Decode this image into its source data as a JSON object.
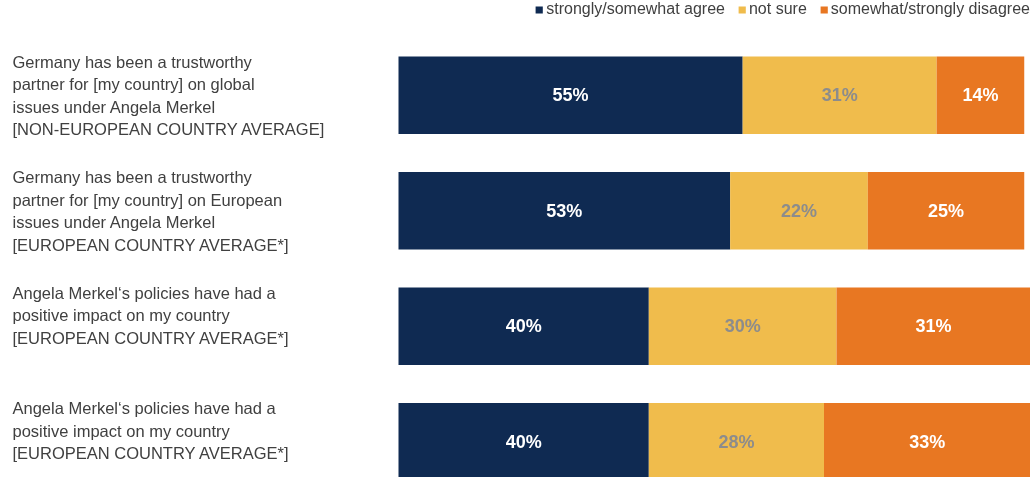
{
  "chart_data": {
    "type": "bar",
    "orientation": "horizontal",
    "stacked": true,
    "legend": "top right",
    "categories": [
      "Germany has been a trustworthy\npartner for [my country] on global\nissues under Angela Merkel\n[NON-EUROPEAN COUNTRY AVERAGE]",
      "Germany has been a trustworthy\npartner for [my country] on European\nissues under Angela Merkel\n[EUROPEAN COUNTRY AVERAGE*]",
      "Angela Merkel‘s policies have had a\npositive impact on my country\n[EUROPEAN COUNTRY AVERAGE*]",
      "Angela Merkel‘s policies have had a\npositive impact on my country\n[EUROPEAN COUNTRY AVERAGE*]"
    ],
    "series": [
      {
        "name": "strongly/somewhat agree",
        "color": "#0f2a52",
        "values": [
          55,
          53,
          40,
          40
        ],
        "value_labels": [
          "55%",
          "53%",
          "40%",
          "40%"
        ]
      },
      {
        "name": "not sure",
        "color": "#f0bc4c",
        "values": [
          31,
          22,
          30,
          28
        ],
        "value_labels": [
          "31%",
          "22%",
          "30%",
          "28%"
        ]
      },
      {
        "name": "somewhat/strongly disagree",
        "color": "#e87722",
        "values": [
          14,
          25,
          31,
          33
        ],
        "value_labels": [
          "14%",
          "25%",
          "31%",
          "33%"
        ]
      }
    ]
  }
}
